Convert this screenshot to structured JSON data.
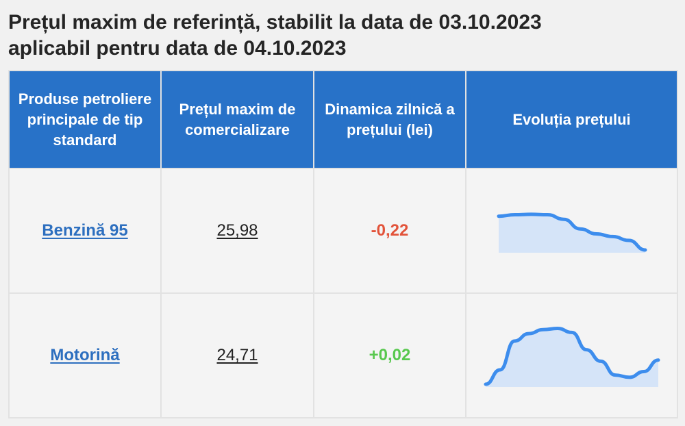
{
  "title": {
    "line1": "Prețul maxim de referință, stabilit la data de 03.10.2023",
    "line2": "aplicabil pentru data de 04.10.2023"
  },
  "table": {
    "headers": [
      "Produse petroliere principale de tip standard",
      "Prețul maxim de comercializare",
      "Dinamica zilnică a prețului (lei)",
      "Evoluția prețului"
    ],
    "rows": [
      {
        "product": "Benzină 95",
        "price": "25,98",
        "dynamic": "-0,22",
        "dynamic_color": "#e2533a",
        "trend_values": [
          0.88,
          0.92,
          0.93,
          0.92,
          0.8,
          0.55,
          0.42,
          0.35,
          0.25,
          0.0
        ]
      },
      {
        "product": "Motorină",
        "price": "24,71",
        "dynamic": "+0,02",
        "dynamic_color": "#58c84e",
        "trend_values": [
          0.0,
          0.25,
          0.75,
          0.88,
          0.95,
          0.97,
          0.9,
          0.6,
          0.4,
          0.16,
          0.12,
          0.22,
          0.42
        ]
      }
    ]
  },
  "colors": {
    "header_bg": "#2872c8",
    "link": "#2d6fbf",
    "sparkline_stroke": "#3d8ded",
    "sparkline_fill": "#cfe1f8"
  },
  "icons": []
}
